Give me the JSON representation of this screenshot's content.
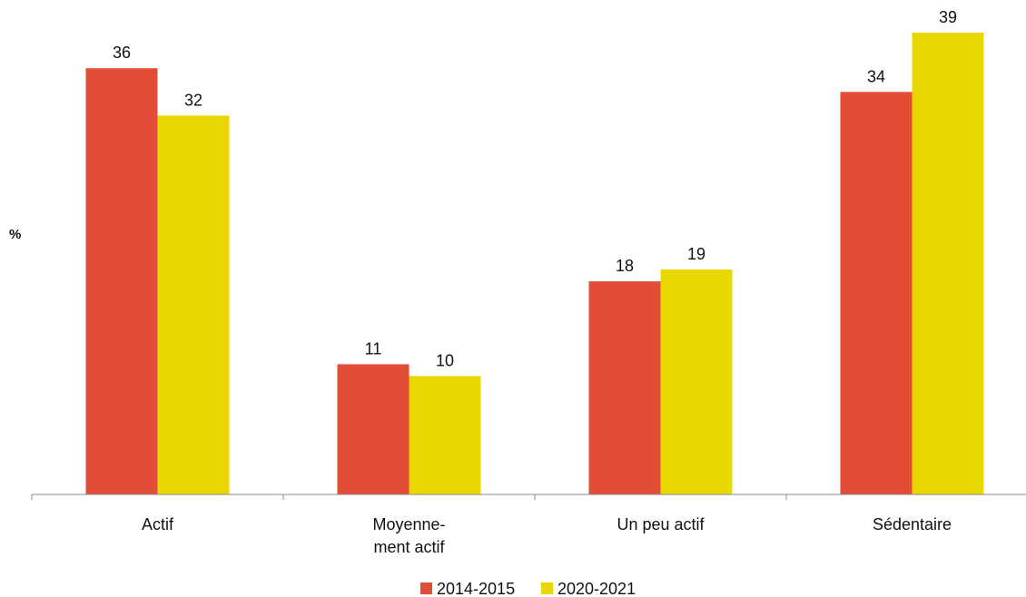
{
  "chart_data": {
    "type": "bar",
    "title": "",
    "xlabel": "",
    "ylabel": "%",
    "categories": [
      "Actif",
      "Moyenne-\nment actif",
      "Un peu actif",
      "Sédentaire"
    ],
    "series": [
      {
        "name": "2014-2015",
        "values": [
          36,
          11,
          18,
          34
        ],
        "color": "#e34c37"
      },
      {
        "name": "2020-2021",
        "values": [
          32,
          10,
          19,
          39
        ],
        "color": "#e9d800"
      }
    ],
    "ylim": [
      0,
      40
    ],
    "grid": false,
    "legend_position": "bottom"
  }
}
